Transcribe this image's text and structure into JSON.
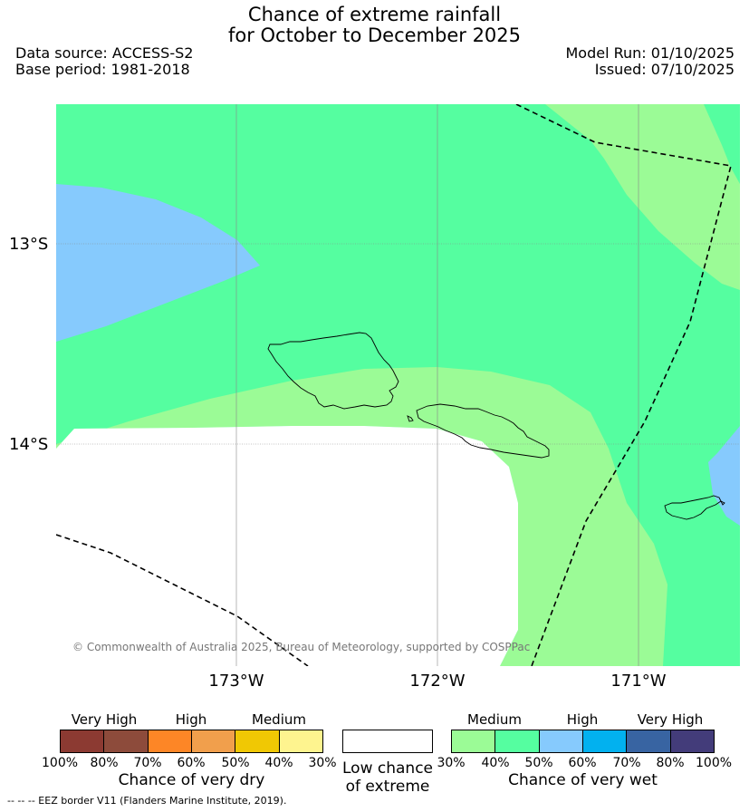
{
  "title": {
    "line1": "Chance of extreme rainfall",
    "line2": "for October to December 2025"
  },
  "meta": {
    "data_source": "Data source: ACCESS-S2",
    "base_period": "Base period: 1981-2018",
    "model_run": "Model Run: 01/10/2025",
    "issued": "Issued: 07/10/2025"
  },
  "map": {
    "lat_labels": [
      "13°S",
      "14°S"
    ],
    "lon_labels": [
      "173°W",
      "172°W",
      "171°W"
    ],
    "copyright": "© Commonwealth of Australia 2025, Bureau of Meteorology, supported by COSPPac"
  },
  "legend": {
    "dry": {
      "groups": [
        "Very High",
        "High",
        "Medium"
      ],
      "ticks": [
        "100%",
        "80%",
        "70%",
        "60%",
        "50%",
        "40%",
        "30%"
      ],
      "caption": "Chance of very dry",
      "colors": [
        "#8c3a32",
        "#8d4b3b",
        "#fd8626",
        "#f19f4c",
        "#f0c804",
        "#fef48f"
      ]
    },
    "low": {
      "caption_line1": "Low chance",
      "caption_line2": "of extreme",
      "color": "#ffffff"
    },
    "wet": {
      "groups": [
        "Medium",
        "High",
        "Very High"
      ],
      "ticks": [
        "30%",
        "40%",
        "50%",
        "60%",
        "70%",
        "80%",
        "100%"
      ],
      "caption": "Chance of very wet",
      "colors": [
        "#9bfb96",
        "#55fea0",
        "#86cafd",
        "#02b1ef",
        "#3864a2",
        "#433c7a"
      ]
    }
  },
  "footer": {
    "eez_note": "--  --  -- EEZ border V11 (Flanders Marine Institute, 2019)."
  }
}
